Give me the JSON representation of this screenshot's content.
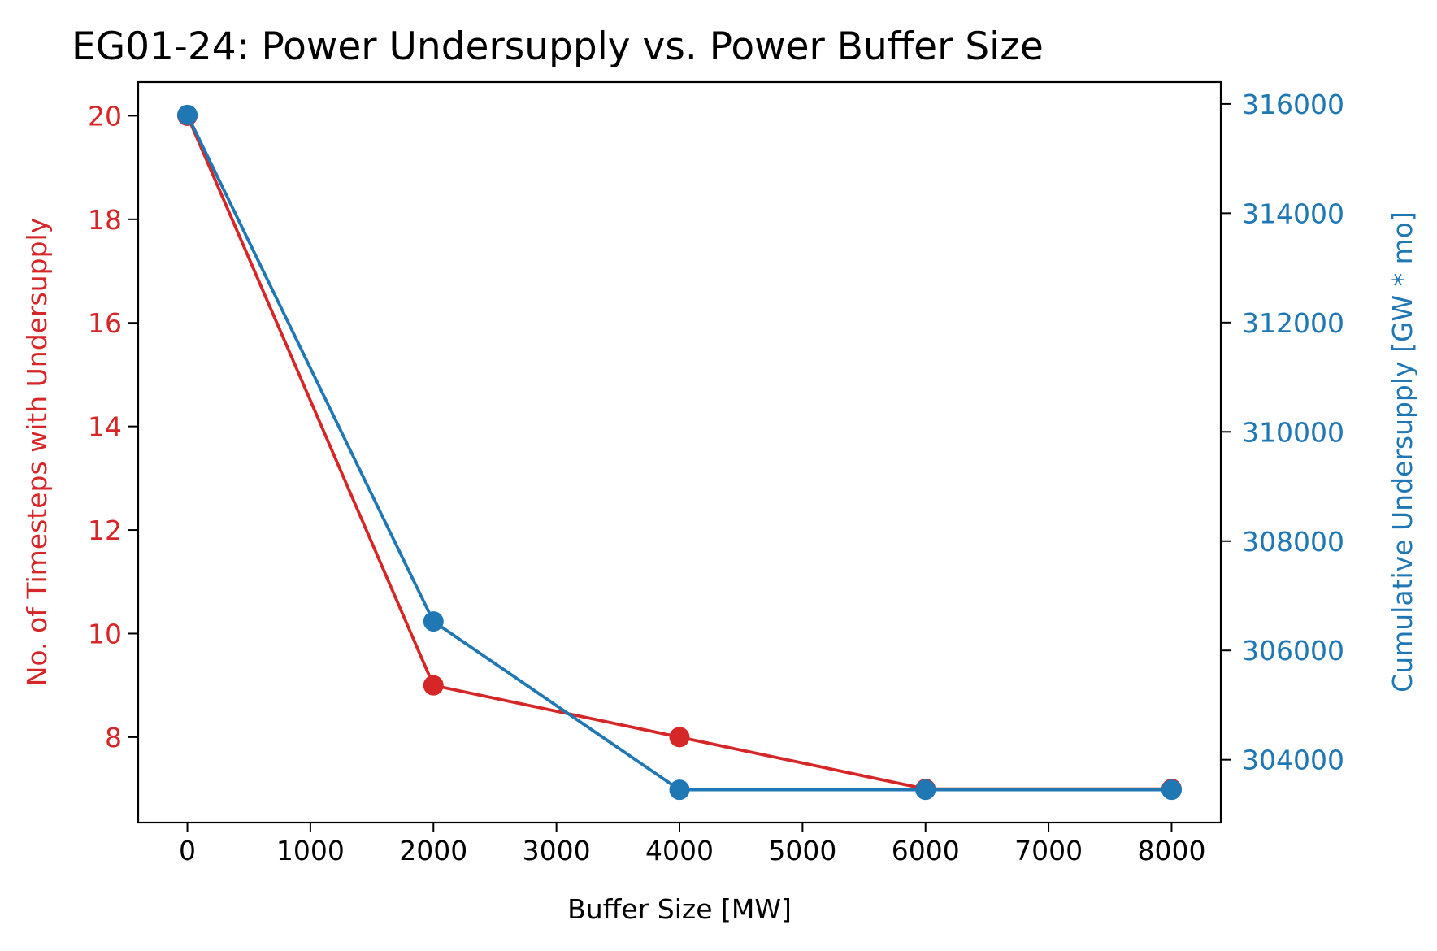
{
  "chart_data": {
    "type": "line",
    "title": "EG01-24: Power Undersupply vs. Power Buffer Size",
    "xlabel": "Buffer Size [MW]",
    "ylabel_left": "No. of Timesteps with Undersupply",
    "ylabel_right": "Cumulative Undersupply [GW * mo]",
    "x": [
      0,
      2000,
      4000,
      6000,
      8000
    ],
    "xlim": [
      -400,
      8400
    ],
    "xticks": [
      0,
      1000,
      2000,
      3000,
      4000,
      5000,
      6000,
      7000,
      8000
    ],
    "ylim_left": [
      6.35,
      20.65
    ],
    "yticks_left": [
      8,
      10,
      12,
      14,
      16,
      18,
      20
    ],
    "ylim_right": [
      302850,
      316400
    ],
    "yticks_right": [
      304000,
      306000,
      308000,
      310000,
      312000,
      314000,
      316000
    ],
    "grid": false,
    "series": [
      {
        "axis": "left",
        "color": "#d62728",
        "marker": "circle",
        "values": [
          20,
          9,
          8,
          7,
          7
        ]
      },
      {
        "axis": "right",
        "color": "#1f77b4",
        "marker": "circle",
        "values": [
          315800,
          306530,
          303450,
          303450,
          303450
        ]
      }
    ]
  }
}
